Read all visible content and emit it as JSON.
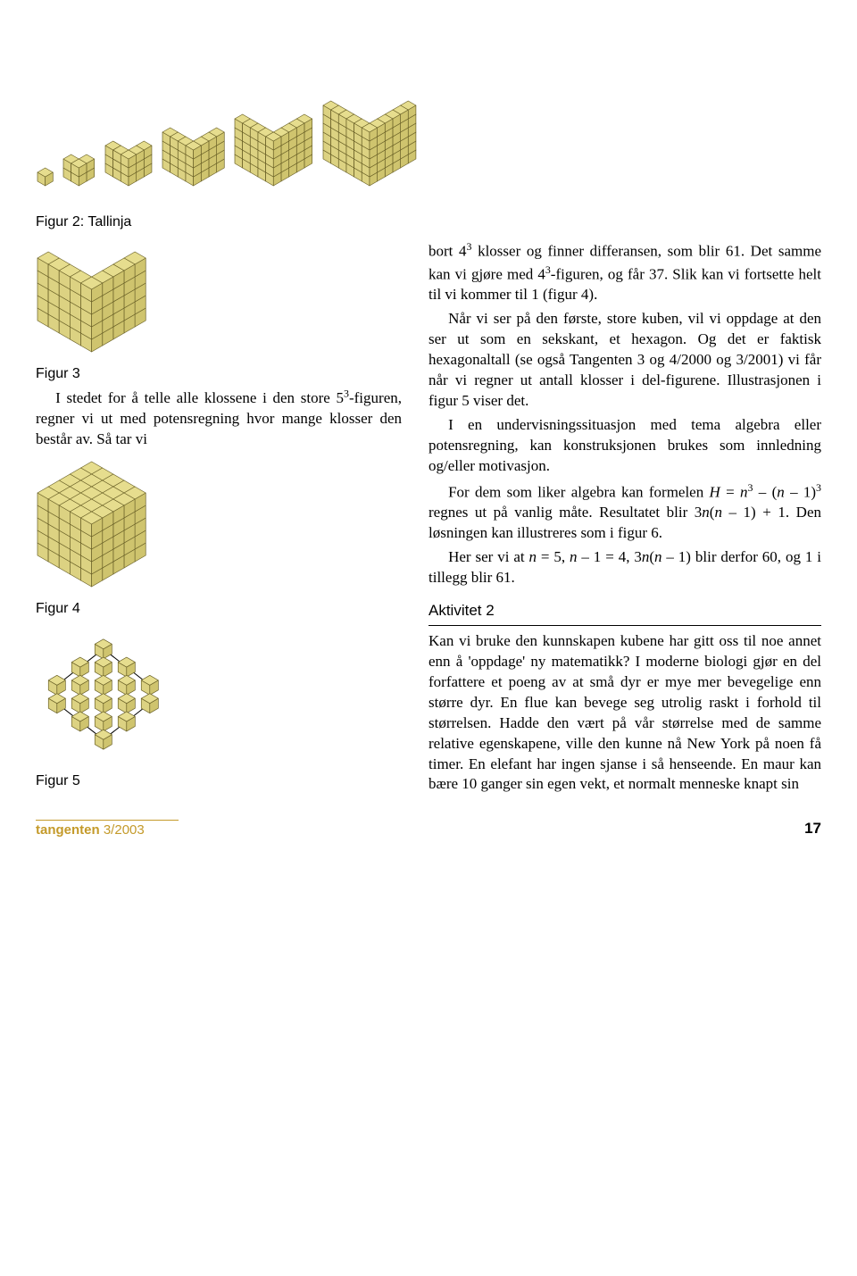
{
  "colors": {
    "cube_face_top": "#e6dd8e",
    "cube_face_left": "#dcd282",
    "cube_face_right": "#cfc46e",
    "cube_stroke": "#6b6228",
    "background": "#ffffff",
    "text": "#000000",
    "footer_accent": "#c49a2a"
  },
  "top_row": {
    "sizes": [
      1,
      2,
      3,
      4,
      5,
      6
    ],
    "unit": 10
  },
  "fig2_caption": "Figur 2: Tallinja",
  "fig3": {
    "caption": "Figur 3",
    "size": 5,
    "inner": 4,
    "unit": 14
  },
  "fig4": {
    "caption": "Figur 4",
    "size": 5,
    "unit": 14
  },
  "fig5": {
    "caption": "Figur 5",
    "cubes": [
      [
        0,
        0
      ],
      [
        -1,
        1
      ],
      [
        0,
        1
      ],
      [
        1,
        1
      ],
      [
        -2,
        2
      ],
      [
        -1,
        2
      ],
      [
        0,
        2
      ],
      [
        1,
        2
      ],
      [
        2,
        2
      ],
      [
        -2,
        3
      ],
      [
        -1,
        3
      ],
      [
        0,
        3
      ],
      [
        1,
        3
      ],
      [
        2,
        3
      ],
      [
        -1,
        4
      ],
      [
        0,
        4
      ],
      [
        1,
        4
      ],
      [
        0,
        5
      ]
    ],
    "hex_vertices": [
      [
        0,
        0
      ],
      [
        -2,
        2
      ],
      [
        -2,
        3
      ],
      [
        0,
        5
      ],
      [
        2,
        3
      ],
      [
        2,
        2
      ]
    ],
    "unit": 26,
    "cube_scale": 11
  },
  "left_para1": "I stedet for å telle alle klossene i den store 5³-figuren, regner vi ut med potensregning hvor mange klosser den består av. Så tar vi",
  "right_paras": [
    "bort 4³ klosser og finner differansen, som blir 61. Det samme kan vi gjøre med 4³-figuren, og får 37. Slik kan vi fortsette helt til vi kommer til 1 (figur 4).",
    "Når vi ser på den første, store kuben, vil vi oppdage at den ser ut som en sekskant, et hexagon. Og det er faktisk hexagonaltall (se også Tangenten 3 og 4/2000 og 3/2001) vi får når vi regner ut antall klosser i del-figurene. Illustrasjonen i figur 5 viser det.",
    "I en undervisningssituasjon med tema algebra eller potensregning, kan konstruksjonen brukes som innledning og/eller motivasjon.",
    "For dem som liker algebra kan formelen H = n³ – (n – 1)³ regnes ut på vanlig måte. Resultatet blir 3n(n – 1) + 1. Den løsningen kan illustreres som i figur 6.",
    "Her ser vi at n = 5, n – 1 = 4, 3n(n – 1) blir derfor 60, og 1 i tillegg blir 61."
  ],
  "activity": {
    "title": "Aktivitet 2",
    "text": "Kan vi bruke den kunnskapen kubene har gitt oss til noe annet enn å 'oppdage' ny matematikk? I moderne biologi gjør en del forfattere et poeng av at små dyr er mye mer bevegelige enn større dyr. En flue kan bevege seg utrolig raskt i forhold til størrelsen. Hadde den vært på vår størrelse med de samme relative egenskapene, ville den kunne nå New York på noen få timer. En elefant har ingen sjanse i så henseende. En maur kan bære 10 ganger sin egen vekt, et normalt menneske knapt sin"
  },
  "footer": {
    "journal": "tangenten",
    "issue": "3/2003",
    "page": "17"
  }
}
